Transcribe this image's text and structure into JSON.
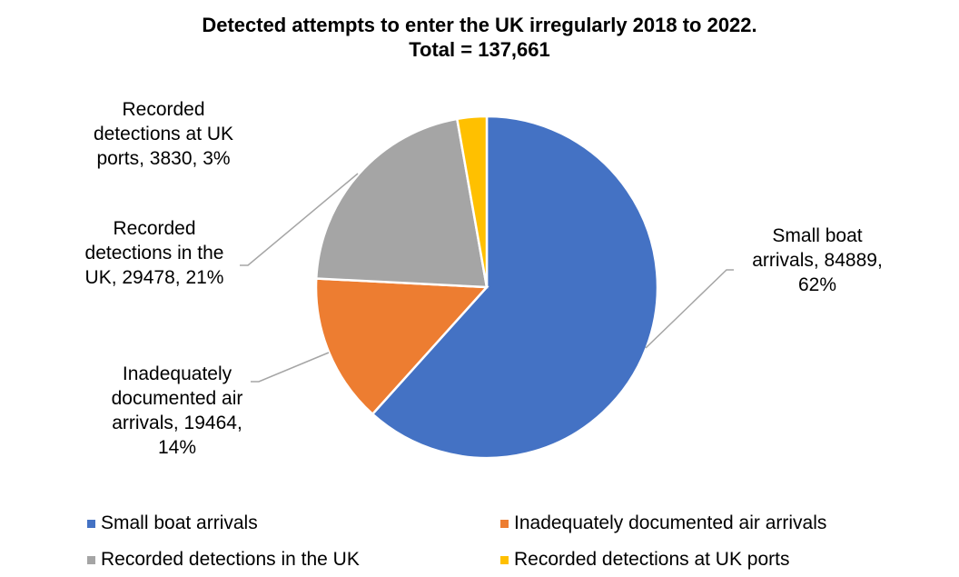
{
  "chart_data": {
    "type": "pie",
    "title": "Detected attempts to enter the UK irregularly 2018 to 2022.",
    "subtitle": "Total = 137,661",
    "total": 137661,
    "series": [
      {
        "name": "Small boat arrivals",
        "value": 84889,
        "percent": 62,
        "color": "#4472C4",
        "label": "Small boat arrivals, 84889, 62%"
      },
      {
        "name": "Inadequately documented air arrivals",
        "value": 19464,
        "percent": 14,
        "color": "#ED7D31",
        "label": "Inadequately documented air arrivals, 19464, 14%"
      },
      {
        "name": "Recorded detections in the UK",
        "value": 29478,
        "percent": 21,
        "color": "#A5A5A5",
        "label": "Recorded detections in the UK, 29478, 21%"
      },
      {
        "name": "Recorded detections at UK ports",
        "value": 3830,
        "percent": 3,
        "color": "#FFC000",
        "label": "Recorded detections at UK ports, 3830, 3%"
      }
    ],
    "legend_position": "bottom"
  },
  "title": {
    "line1": "Detected attempts to enter the UK irregularly 2018 to 2022.",
    "line2": "Total = 137,661"
  },
  "labels": {
    "boat": [
      "Small boat",
      "arrivals, 84889,",
      "62%"
    ],
    "air": [
      "Inadequately",
      "documented air",
      "arrivals, 19464,",
      "14%"
    ],
    "uk": [
      "Recorded",
      "detections in the",
      "UK, 29478, 21%"
    ],
    "ports": [
      "Recorded",
      "detections at UK",
      "ports, 3830, 3%"
    ]
  },
  "legend": [
    "Small boat arrivals",
    "Inadequately documented air arrivals",
    "Recorded detections in the UK",
    "Recorded detections at UK ports"
  ]
}
